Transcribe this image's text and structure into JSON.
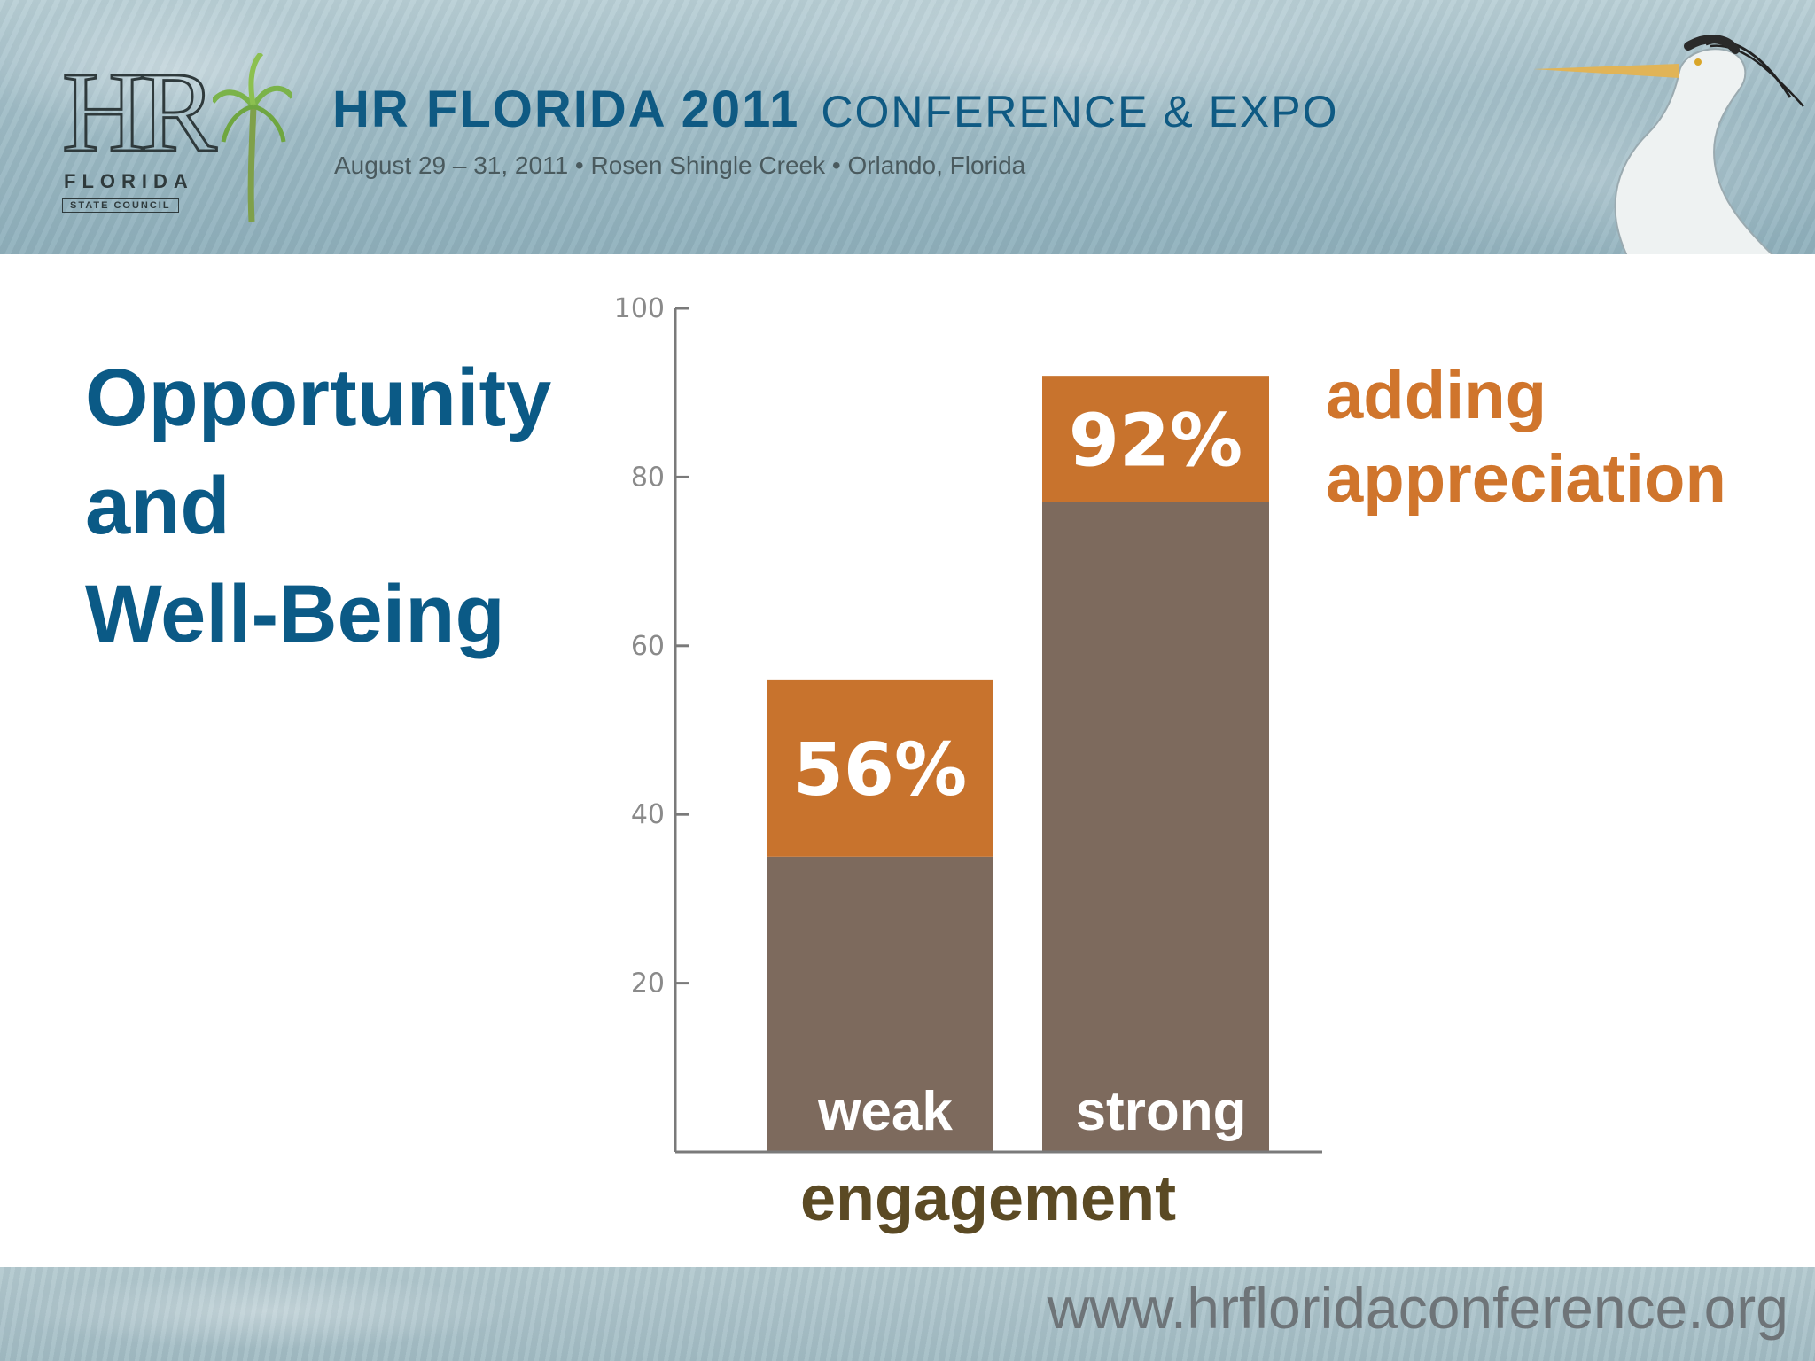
{
  "header": {
    "logo": {
      "mark": "HR",
      "name": "FLORIDA",
      "sub": "STATE COUNCIL"
    },
    "title_bold": "HR FLORIDA 2011",
    "title_light": "CONFERENCE & EXPO",
    "subtitle": "August 29 – 31, 2011  •  Rosen Shingle Creek  •  Orlando, Florida"
  },
  "slide": {
    "title_lines": [
      "Opportunity",
      "and",
      "Well-Being"
    ],
    "side_label_lines": [
      "adding",
      "appreciation"
    ]
  },
  "footer": {
    "url": "www.hrfloridaconference.org"
  },
  "colors": {
    "base": "#7d6a5d",
    "appreciation": "#c8732d",
    "title": "#0b5a86",
    "engagement": "#5b4a24"
  },
  "chart_data": {
    "type": "bar",
    "stacked": true,
    "categories": [
      "weak",
      "strong"
    ],
    "series": [
      {
        "values": [
          35,
          77
        ]
      },
      {
        "values": [
          21,
          15
        ]
      }
    ],
    "totals": [
      56,
      92
    ],
    "data_labels": [
      "56%",
      "92%"
    ],
    "xlabel": "engagement",
    "ylabel": "",
    "ylim": [
      0,
      100
    ],
    "yticks": [
      20,
      40,
      60,
      80,
      100
    ],
    "grid": false,
    "legend": "none"
  }
}
